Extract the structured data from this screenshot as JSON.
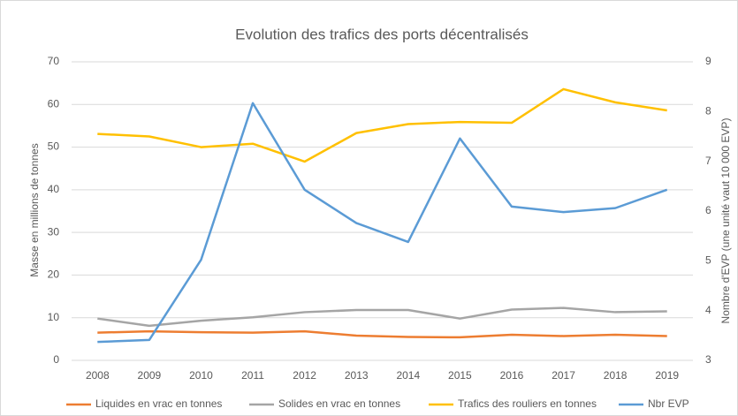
{
  "chart_data": {
    "type": "line",
    "title": "Evolution des trafics des ports décentralisés",
    "y_label": "Masse  en millions de tonnes",
    "y2_label": "Nombre d'EVP (une unité vaut 10 000 EVP)",
    "categories": [
      "2008",
      "2009",
      "2010",
      "2011",
      "2012",
      "2013",
      "2014",
      "2015",
      "2016",
      "2017",
      "2018",
      "2019"
    ],
    "series": [
      {
        "name": "Liquides en vrac en tonnes",
        "color": "#ed7d31",
        "values": [
          6.5,
          6.8,
          6.6,
          6.5,
          6.8,
          5.8,
          5.5,
          5.4,
          6.0,
          5.7,
          6.0,
          5.7
        ]
      },
      {
        "name": "Solides en vrac en tonnes",
        "color": "#a5a5a5",
        "values": [
          9.8,
          8.1,
          9.3,
          10.1,
          11.3,
          11.8,
          11.8,
          9.8,
          11.9,
          12.3,
          11.3,
          11.5
        ]
      },
      {
        "name": "Trafics des rouliers en tonnes",
        "color": "#ffc000",
        "values": [
          53.1,
          52.5,
          50.0,
          50.8,
          46.6,
          53.3,
          55.4,
          55.9,
          55.7,
          63.6,
          60.5,
          58.6
        ]
      },
      {
        "name": "Nbr EVP",
        "color": "#5b9bd5",
        "axis": "y2",
        "values": [
          3.37,
          3.41,
          5.02,
          8.17,
          6.43,
          5.76,
          5.38,
          7.46,
          6.09,
          5.98,
          6.06,
          6.43
        ]
      }
    ],
    "ylim": [
      0,
      70
    ],
    "yticks": [
      0,
      10,
      20,
      30,
      40,
      50,
      60,
      70
    ],
    "y2lim": [
      3,
      9
    ],
    "y2ticks": [
      3,
      4,
      5,
      6,
      7,
      8,
      9
    ],
    "grid": true,
    "legend": "bottom"
  }
}
